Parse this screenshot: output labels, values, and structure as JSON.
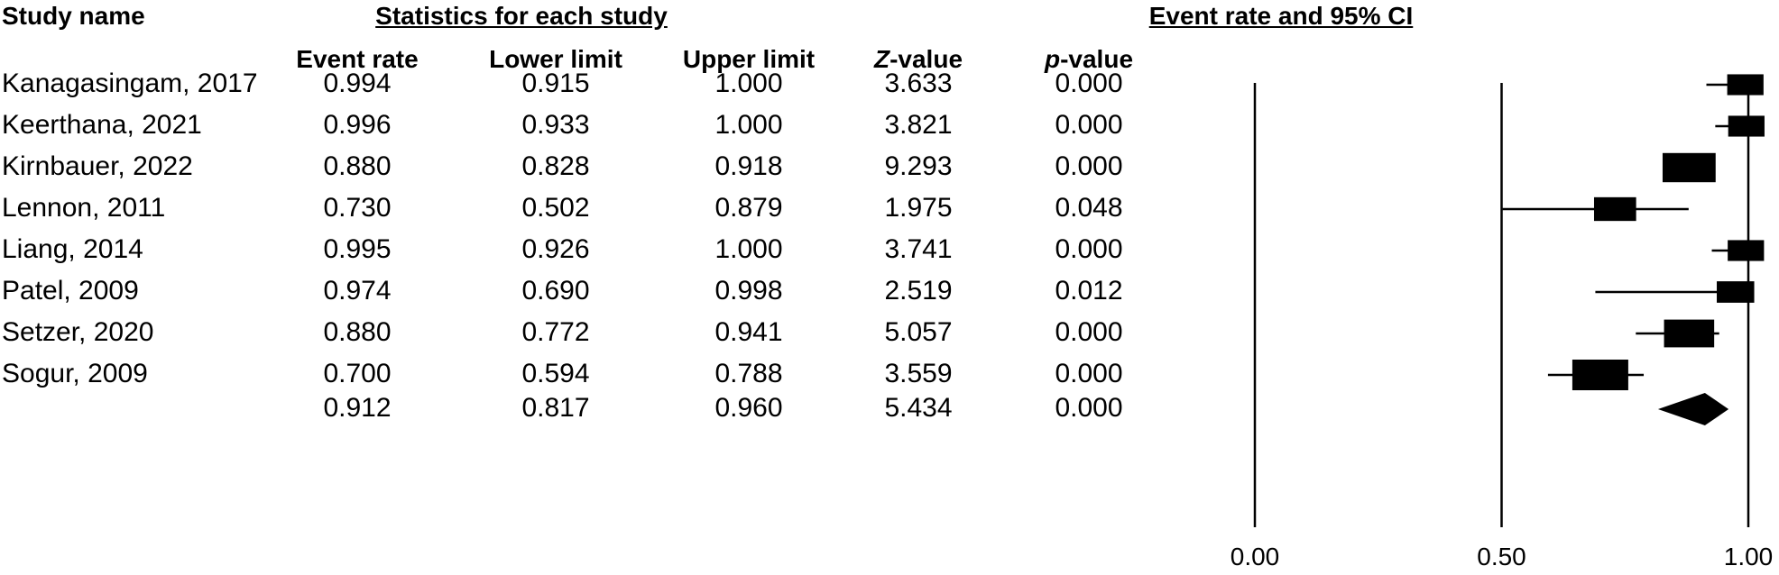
{
  "headers": {
    "study_name": "Study name",
    "stats_group": "Statistics for each study",
    "plot_title": "Event rate and 95% CI",
    "event_rate": "Event rate",
    "lower_limit": "Lower limit",
    "upper_limit": "Upper limit",
    "z_italic": "Z",
    "z_rest": "-value",
    "p_italic": "p",
    "p_rest": "-value"
  },
  "chart_data": {
    "type": "table",
    "plot": "forest",
    "x_range": [
      0,
      1
    ],
    "x_ticks": [
      "0.00",
      "0.50",
      "1.00"
    ],
    "rows": [
      {
        "study": "Kanagasingam, 2017",
        "event_rate": "0.994",
        "lower": "0.915",
        "upper": "1.000",
        "z": "3.633",
        "p": "0.000",
        "weight": 0.32
      },
      {
        "study": "Keerthana, 2021",
        "event_rate": "0.996",
        "lower": "0.933",
        "upper": "1.000",
        "z": "3.821",
        "p": "0.000",
        "weight": 0.32
      },
      {
        "study": "Kirnbauer, 2022",
        "event_rate": "0.880",
        "lower": "0.828",
        "upper": "0.918",
        "z": "9.293",
        "p": "0.000",
        "weight": 0.9
      },
      {
        "study": "Lennon, 2011",
        "event_rate": "0.730",
        "lower": "0.502",
        "upper": "0.879",
        "z": "1.975",
        "p": "0.048",
        "weight": 0.52
      },
      {
        "study": "Liang, 2014",
        "event_rate": "0.995",
        "lower": "0.926",
        "upper": "1.000",
        "z": "3.741",
        "p": "0.000",
        "weight": 0.32
      },
      {
        "study": "Patel, 2009",
        "event_rate": "0.974",
        "lower": "0.690",
        "upper": "0.998",
        "z": "2.519",
        "p": "0.012",
        "weight": 0.36
      },
      {
        "study": "Setzer, 2020",
        "event_rate": "0.880",
        "lower": "0.772",
        "upper": "0.941",
        "z": "5.057",
        "p": "0.000",
        "weight": 0.8
      },
      {
        "study": "Sogur, 2009",
        "event_rate": "0.700",
        "lower": "0.594",
        "upper": "0.788",
        "z": "3.559",
        "p": "0.000",
        "weight": 1.0
      }
    ],
    "summary": {
      "study": "",
      "event_rate": "0.912",
      "lower": "0.817",
      "upper": "0.960",
      "z": "5.434",
      "p": "0.000"
    }
  }
}
